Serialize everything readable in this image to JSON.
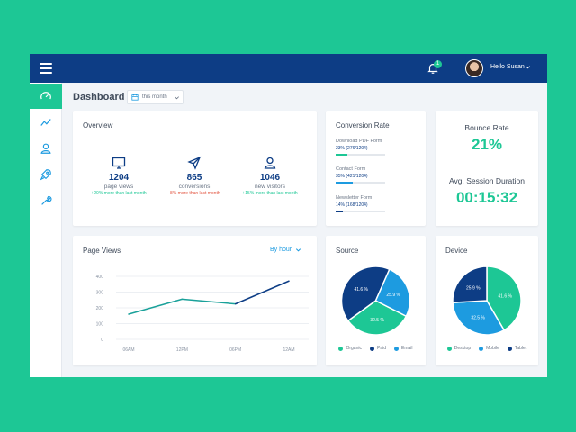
{
  "colors": {
    "navy": "#0d3d85",
    "green": "#1dc795",
    "blue": "#1d9be0",
    "red": "#e2533e"
  },
  "topbar": {
    "notification_count": "1",
    "user_greeting": "Hello Susan"
  },
  "header": {
    "title": "Dashboard",
    "period": "this month"
  },
  "sidebar": {
    "icons": [
      "gauge-icon",
      "chart-line-icon",
      "user-icon",
      "rocket-icon",
      "wrench-icon"
    ]
  },
  "overview": {
    "title": "Overview",
    "items": [
      {
        "icon": "monitor-icon",
        "value": "1204",
        "label": "page views",
        "change": "+20% more than last month",
        "trend": "up"
      },
      {
        "icon": "send-icon",
        "value": "865",
        "label": "conversions",
        "change": "-8% more than last month",
        "trend": "down"
      },
      {
        "icon": "user-icon",
        "value": "1046",
        "label": "new visitors",
        "change": "+15% more than last month",
        "trend": "up"
      }
    ]
  },
  "conversion": {
    "title": "Conversion Rate",
    "items": [
      {
        "name": "Download PDF Form",
        "value": "23% (276/1204)",
        "percent": 23,
        "color": "#1dc795"
      },
      {
        "name": "Contact Form",
        "value": "35% (421/1204)",
        "percent": 35,
        "color": "#1d9be0"
      },
      {
        "name": "Newsletter Form",
        "value": "14% (168/1204)",
        "percent": 14,
        "color": "#0d3d85"
      }
    ]
  },
  "bounce": {
    "bounce_label": "Bounce Rate",
    "bounce_value": "21%",
    "session_label": "Avg. Session Duration",
    "session_value": "00:15:32"
  },
  "pageviews": {
    "title": "Page Views",
    "filter": "By hour",
    "chart_data": {
      "type": "line",
      "x": [
        "06AM",
        "12PM",
        "06PM",
        "12AM"
      ],
      "y_ticks": [
        "400",
        "300",
        "200",
        "100",
        "0"
      ],
      "ylim": [
        0,
        400
      ],
      "series": [
        {
          "x": [
            0,
            1,
            2,
            3
          ],
          "values": [
            160,
            255,
            225,
            370
          ]
        }
      ]
    }
  },
  "source": {
    "title": "Source",
    "chart_data": {
      "type": "pie",
      "slices": [
        {
          "name": "Organic",
          "value": 32.5,
          "label": "32.5 %",
          "color": "#1dc795"
        },
        {
          "name": "Paid",
          "value": 41.6,
          "label": "41.6 %",
          "color": "#0d3d85"
        },
        {
          "name": "Email",
          "value": 25.9,
          "label": "25.9 %",
          "color": "#1d9be0"
        }
      ]
    }
  },
  "device": {
    "title": "Device",
    "chart_data": {
      "type": "pie",
      "slices": [
        {
          "name": "Desktop",
          "value": 41.6,
          "label": "41.6 %",
          "color": "#1dc795"
        },
        {
          "name": "Mobile",
          "value": 32.5,
          "label": "32.5 %",
          "color": "#1d9be0"
        },
        {
          "name": "Tablet",
          "value": 25.9,
          "label": "25.9 %",
          "color": "#0d3d85"
        }
      ]
    }
  }
}
